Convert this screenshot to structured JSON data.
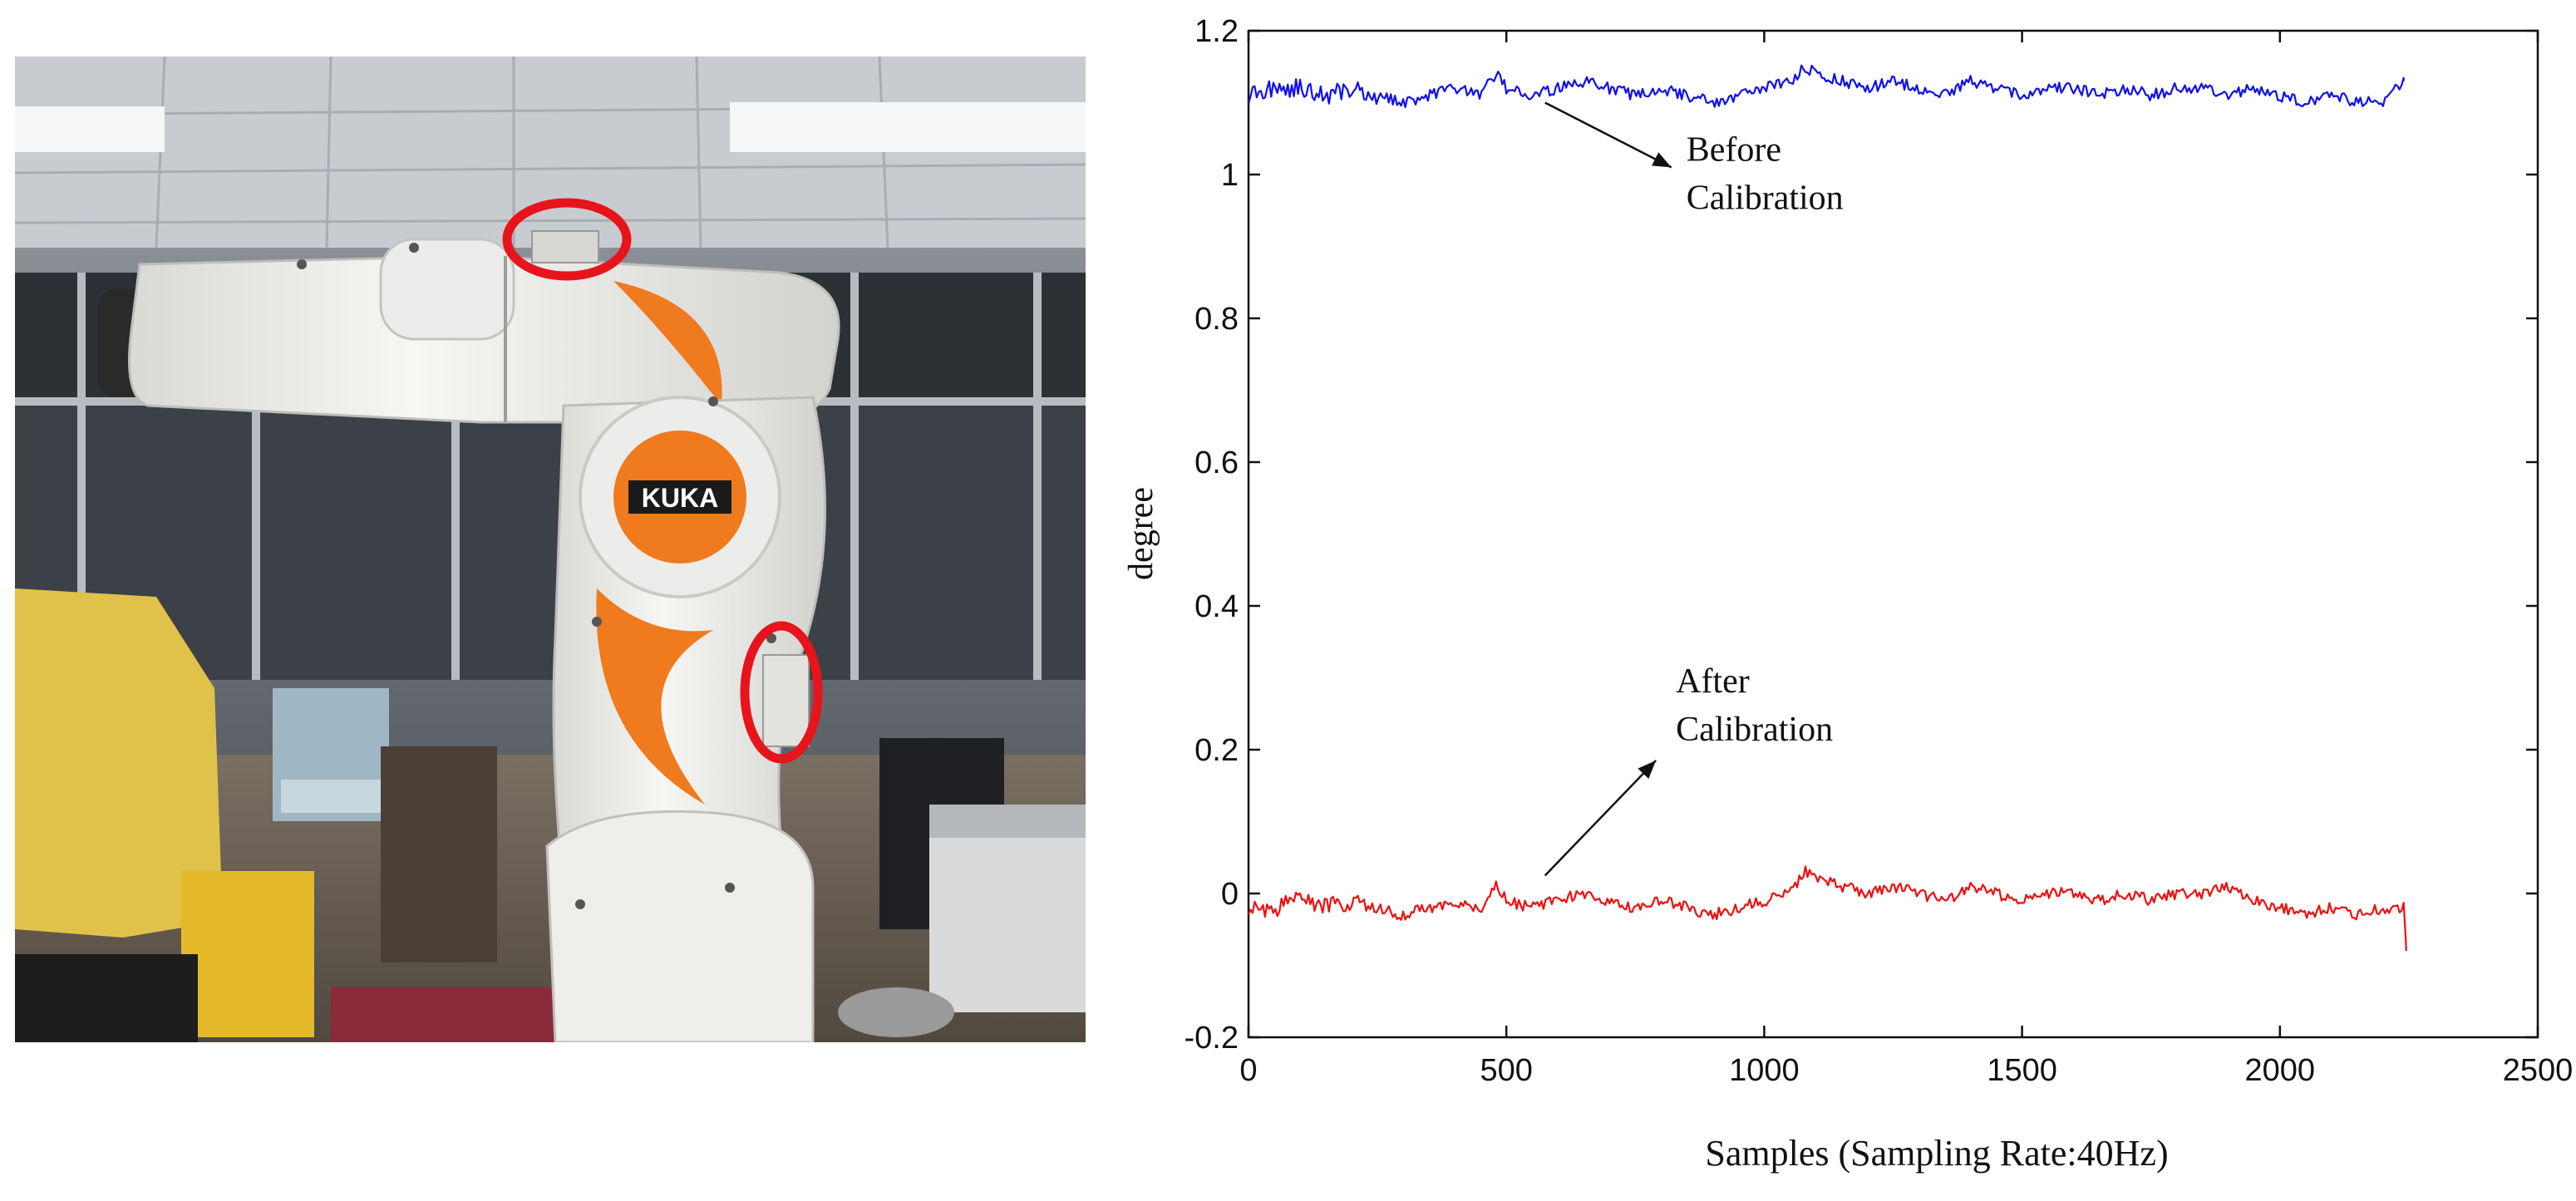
{
  "photo": {
    "logo_text": "KUKA",
    "accent": "#f07a1e",
    "marker_color": "#e8141c",
    "markers": [
      "sensor-marker-top",
      "sensor-marker-side"
    ]
  },
  "chart_data": {
    "type": "line",
    "title": "",
    "xlabel": "Samples (Sampling Rate:40Hz)",
    "ylabel": "degree",
    "xlim": [
      0,
      2500
    ],
    "ylim": [
      -0.2,
      1.2
    ],
    "x_ticks": [
      0,
      500,
      1000,
      1500,
      2000,
      2500
    ],
    "y_ticks": [
      -0.2,
      0,
      0.2,
      0.4,
      0.6,
      0.8,
      1,
      1.2
    ],
    "x_tick_labels": [
      "0",
      "500",
      "1000",
      "1500",
      "2000",
      "2500"
    ],
    "y_tick_labels": [
      "-0.2",
      "0",
      "0.2",
      "0.4",
      "0.6",
      "0.8",
      "1",
      "1.2"
    ],
    "grid": false,
    "legend": "none",
    "series": [
      {
        "color": "#1010ee",
        "x": [
          0,
          50,
          100,
          150,
          200,
          250,
          300,
          350,
          400,
          450,
          480,
          500,
          550,
          600,
          650,
          700,
          750,
          800,
          850,
          900,
          950,
          1000,
          1050,
          1080,
          1100,
          1150,
          1200,
          1250,
          1300,
          1350,
          1400,
          1450,
          1500,
          1550,
          1600,
          1650,
          1700,
          1750,
          1800,
          1850,
          1900,
          1950,
          2000,
          2050,
          2100,
          2150,
          2200,
          2240
        ],
        "y": [
          1.11,
          1.12,
          1.12,
          1.11,
          1.12,
          1.11,
          1.1,
          1.11,
          1.12,
          1.11,
          1.14,
          1.12,
          1.11,
          1.12,
          1.13,
          1.12,
          1.11,
          1.12,
          1.11,
          1.1,
          1.11,
          1.12,
          1.13,
          1.15,
          1.14,
          1.13,
          1.12,
          1.13,
          1.12,
          1.11,
          1.13,
          1.12,
          1.11,
          1.12,
          1.12,
          1.11,
          1.12,
          1.11,
          1.12,
          1.12,
          1.11,
          1.12,
          1.11,
          1.1,
          1.11,
          1.1,
          1.1,
          1.13
        ]
      },
      {
        "color": "#ee1010",
        "x": [
          0,
          50,
          100,
          150,
          200,
          250,
          300,
          350,
          400,
          450,
          480,
          500,
          550,
          600,
          650,
          700,
          750,
          800,
          850,
          900,
          950,
          1000,
          1050,
          1080,
          1100,
          1150,
          1200,
          1250,
          1300,
          1350,
          1400,
          1450,
          1500,
          1550,
          1600,
          1650,
          1700,
          1750,
          1800,
          1850,
          1900,
          1950,
          2000,
          2050,
          2100,
          2150,
          2200,
          2240,
          2245
        ],
        "y": [
          -0.02,
          -0.02,
          -0.01,
          -0.02,
          -0.01,
          -0.02,
          -0.03,
          -0.02,
          -0.01,
          -0.02,
          0.01,
          -0.01,
          -0.02,
          -0.01,
          0.0,
          -0.01,
          -0.02,
          -0.01,
          -0.02,
          -0.03,
          -0.02,
          -0.01,
          0.0,
          0.03,
          0.02,
          0.01,
          0.0,
          0.01,
          0.0,
          -0.01,
          0.01,
          0.0,
          -0.01,
          0.0,
          0.0,
          -0.01,
          0.0,
          -0.01,
          0.0,
          0.0,
          0.01,
          -0.01,
          -0.02,
          -0.03,
          -0.02,
          -0.03,
          -0.02,
          -0.02,
          -0.08
        ]
      }
    ],
    "annotations": [
      {
        "lines": [
          "Before",
          "Calibration"
        ],
        "arrow_from": [
          820,
          1.01
        ],
        "arrow_to": [
          575,
          1.1
        ]
      },
      {
        "lines": [
          "After",
          "Calibration"
        ],
        "arrow_from": [
          575,
          0.025
        ],
        "arrow_to": [
          790,
          0.185
        ]
      }
    ]
  }
}
